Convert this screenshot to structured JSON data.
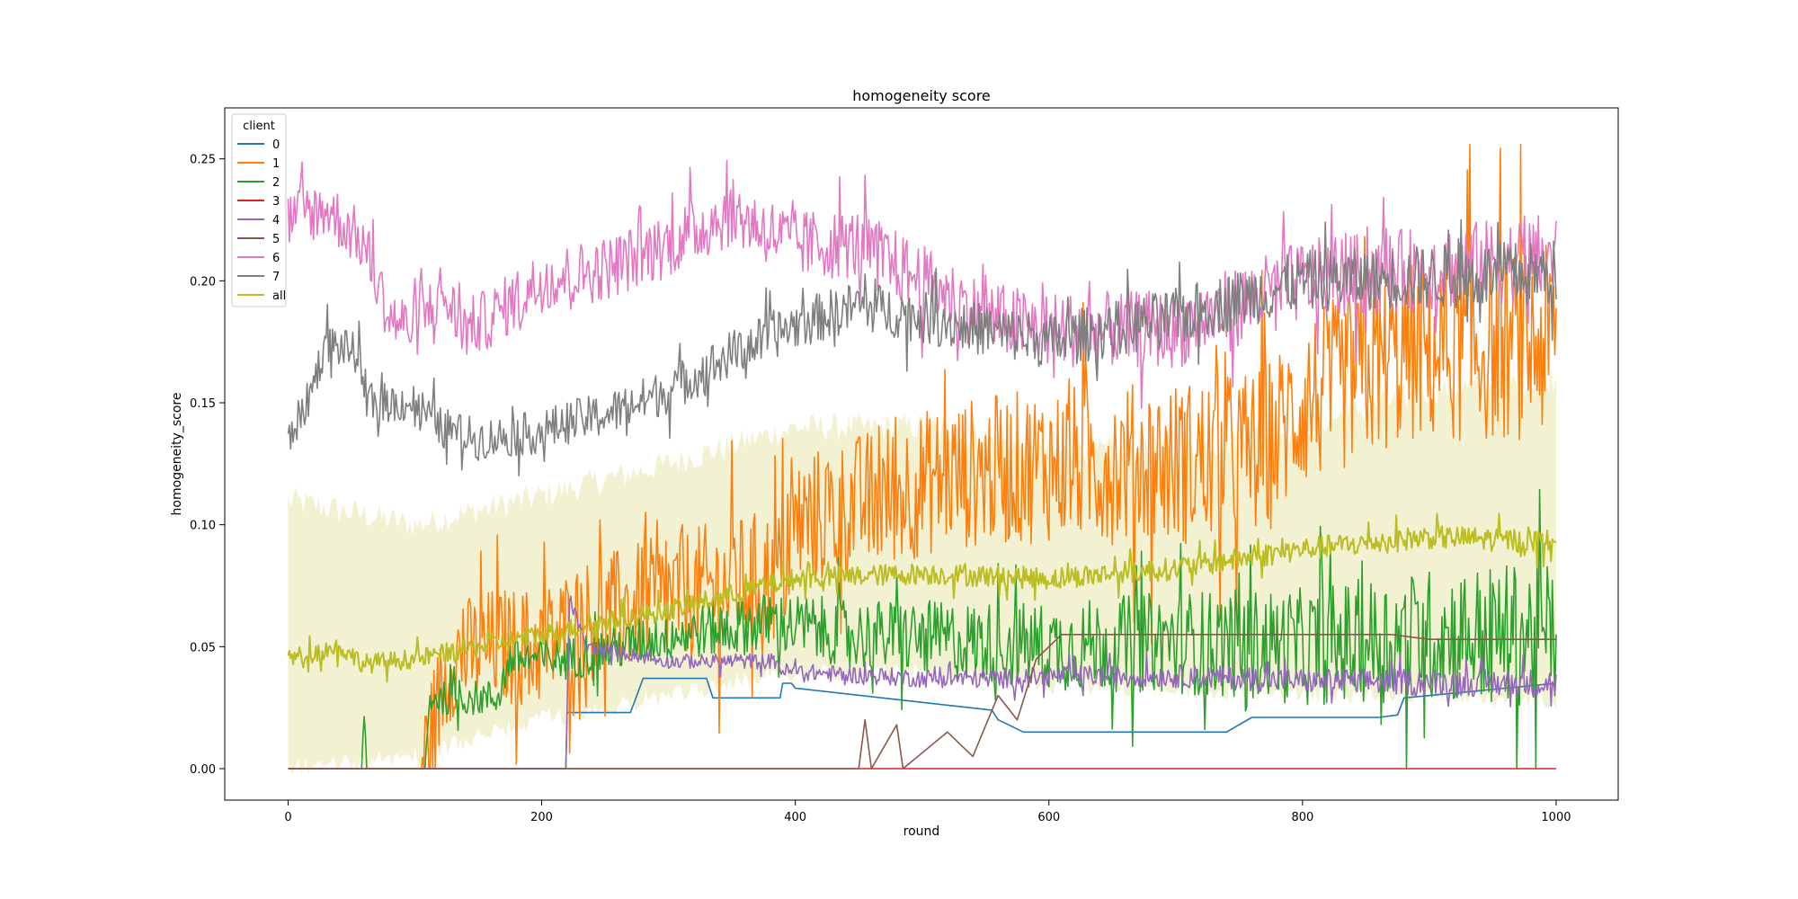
{
  "chart_data": {
    "type": "line",
    "title": "homogeneity score",
    "xlabel": "round",
    "ylabel": "homogeneity_score",
    "xlim": [
      -49.95,
      1048.95
    ],
    "ylim": [
      -0.0129,
      0.2709
    ],
    "xticks": [
      0,
      200,
      400,
      600,
      800,
      1000
    ],
    "yticks": [
      0.0,
      0.05,
      0.1,
      0.15,
      0.2,
      0.25
    ],
    "xtick_labels": [
      "0",
      "200",
      "400",
      "600",
      "800",
      "1000"
    ],
    "ytick_labels": [
      "0.00",
      "0.05",
      "0.10",
      "0.15",
      "0.20",
      "0.25"
    ],
    "grid": false,
    "legend": {
      "title": "client",
      "position": "upper-left"
    },
    "series": [
      {
        "name": "0",
        "color": "#1f77b4",
        "noisy": false,
        "points": [
          [
            0,
            0
          ],
          [
            219,
            0
          ],
          [
            220,
            0.023
          ],
          [
            270,
            0.023
          ],
          [
            280,
            0.037
          ],
          [
            330,
            0.037
          ],
          [
            335,
            0.029
          ],
          [
            388,
            0.029
          ],
          [
            390,
            0.035
          ],
          [
            397,
            0.035
          ],
          [
            400,
            0.033
          ],
          [
            555,
            0.024
          ],
          [
            560,
            0.02
          ],
          [
            580,
            0.015
          ],
          [
            740,
            0.015
          ],
          [
            760,
            0.021
          ],
          [
            860,
            0.021
          ],
          [
            875,
            0.022
          ],
          [
            880,
            0.029
          ],
          [
            960,
            0.033
          ],
          [
            1000,
            0.035
          ]
        ]
      },
      {
        "name": "1",
        "color": "#ff7f0e",
        "noisy": true,
        "band": [
          0.022,
          0.025
        ],
        "bandGrowth": [
          0,
          0.6
        ],
        "points": [
          [
            0,
            0
          ],
          [
            94,
            0
          ],
          [
            105,
            0
          ],
          [
            120,
            0.03
          ],
          [
            130,
            0.045
          ],
          [
            160,
            0.05
          ],
          [
            200,
            0.05
          ],
          [
            230,
            0.06
          ],
          [
            300,
            0.07
          ],
          [
            390,
            0.08
          ],
          [
            400,
            0.1
          ],
          [
            460,
            0.11
          ],
          [
            520,
            0.12
          ],
          [
            600,
            0.125
          ],
          [
            700,
            0.125
          ],
          [
            770,
            0.13
          ],
          [
            800,
            0.15
          ],
          [
            880,
            0.17
          ],
          [
            1000,
            0.175
          ]
        ]
      },
      {
        "name": "2",
        "color": "#2ca02c",
        "noisy": true,
        "band": [
          0.005,
          0.018
        ],
        "bandGrowth": [
          0.2,
          0.7
        ],
        "points": [
          [
            0,
            0
          ],
          [
            58,
            0
          ],
          [
            60,
            0.025
          ],
          [
            62,
            0
          ],
          [
            108,
            0
          ],
          [
            112,
            0.029
          ],
          [
            165,
            0.029
          ],
          [
            175,
            0.045
          ],
          [
            220,
            0.045
          ],
          [
            300,
            0.055
          ],
          [
            380,
            0.06
          ],
          [
            450,
            0.055
          ],
          [
            600,
            0.05
          ],
          [
            700,
            0.052
          ],
          [
            800,
            0.05
          ],
          [
            900,
            0.055
          ],
          [
            1000,
            0.055
          ]
        ]
      },
      {
        "name": "3",
        "color": "#d62728",
        "noisy": false,
        "points": [
          [
            0,
            0
          ],
          [
            1000,
            0
          ]
        ]
      },
      {
        "name": "4",
        "color": "#9467bd",
        "noisy": true,
        "band": [
          0.002,
          0.006
        ],
        "bandGrowth": [
          0,
          0
        ],
        "points": [
          [
            0,
            0
          ],
          [
            219,
            0
          ],
          [
            222,
            0.07
          ],
          [
            235,
            0.05
          ],
          [
            300,
            0.044
          ],
          [
            385,
            0.044
          ],
          [
            390,
            0.04
          ],
          [
            500,
            0.037
          ],
          [
            580,
            0.037
          ],
          [
            600,
            0.038
          ],
          [
            700,
            0.038
          ],
          [
            800,
            0.036
          ],
          [
            1000,
            0.035
          ]
        ]
      },
      {
        "name": "5",
        "color": "#8c564b",
        "noisy": false,
        "points": [
          [
            0,
            0
          ],
          [
            450,
            0
          ],
          [
            455,
            0.02
          ],
          [
            460,
            0
          ],
          [
            480,
            0.018
          ],
          [
            485,
            0
          ],
          [
            520,
            0.015
          ],
          [
            540,
            0.005
          ],
          [
            560,
            0.03
          ],
          [
            575,
            0.02
          ],
          [
            590,
            0.045
          ],
          [
            600,
            0.05
          ],
          [
            610,
            0.055
          ],
          [
            700,
            0.055
          ],
          [
            870,
            0.055
          ],
          [
            900,
            0.053
          ],
          [
            1000,
            0.053
          ]
        ]
      },
      {
        "name": "6",
        "color": "#e377c2",
        "noisy": true,
        "band": [
          0.012,
          0.014
        ],
        "bandGrowth": [
          0,
          0.3
        ],
        "points": [
          [
            0,
            0.225
          ],
          [
            30,
            0.23
          ],
          [
            60,
            0.215
          ],
          [
            80,
            0.185
          ],
          [
            100,
            0.18
          ],
          [
            120,
            0.195
          ],
          [
            140,
            0.18
          ],
          [
            160,
            0.185
          ],
          [
            200,
            0.2
          ],
          [
            250,
            0.205
          ],
          [
            300,
            0.215
          ],
          [
            350,
            0.228
          ],
          [
            400,
            0.215
          ],
          [
            450,
            0.215
          ],
          [
            500,
            0.2
          ],
          [
            550,
            0.185
          ],
          [
            600,
            0.18
          ],
          [
            700,
            0.18
          ],
          [
            800,
            0.2
          ],
          [
            900,
            0.205
          ],
          [
            1000,
            0.21
          ]
        ]
      },
      {
        "name": "7",
        "color": "#7f7f7f",
        "noisy": true,
        "band": [
          0.008,
          0.01
        ],
        "bandGrowth": [
          0,
          0.4
        ],
        "points": [
          [
            0,
            0.135
          ],
          [
            15,
            0.15
          ],
          [
            30,
            0.175
          ],
          [
            55,
            0.17
          ],
          [
            60,
            0.15
          ],
          [
            100,
            0.15
          ],
          [
            120,
            0.14
          ],
          [
            150,
            0.135
          ],
          [
            200,
            0.138
          ],
          [
            220,
            0.142
          ],
          [
            250,
            0.145
          ],
          [
            300,
            0.155
          ],
          [
            350,
            0.17
          ],
          [
            400,
            0.182
          ],
          [
            450,
            0.19
          ],
          [
            500,
            0.185
          ],
          [
            600,
            0.175
          ],
          [
            700,
            0.185
          ],
          [
            800,
            0.2
          ],
          [
            1000,
            0.203
          ]
        ]
      },
      {
        "name": "all",
        "color": "#bcbd22",
        "noisy": true,
        "band": [
          0.004,
          0.005
        ],
        "bandGrowth": [
          0,
          0
        ],
        "points": [
          [
            0,
            0.045
          ],
          [
            40,
            0.05
          ],
          [
            60,
            0.043
          ],
          [
            100,
            0.045
          ],
          [
            150,
            0.05
          ],
          [
            200,
            0.055
          ],
          [
            300,
            0.065
          ],
          [
            400,
            0.078
          ],
          [
            500,
            0.08
          ],
          [
            600,
            0.078
          ],
          [
            700,
            0.082
          ],
          [
            800,
            0.09
          ],
          [
            900,
            0.095
          ],
          [
            1000,
            0.093
          ]
        ]
      }
    ],
    "confidence_band": {
      "series": "all",
      "lower": [
        [
          0,
          0.0
        ],
        [
          100,
          0.005
        ],
        [
          200,
          0.02
        ],
        [
          300,
          0.03
        ],
        [
          400,
          0.04
        ],
        [
          500,
          0.04
        ],
        [
          600,
          0.035
        ],
        [
          700,
          0.032
        ],
        [
          800,
          0.03
        ],
        [
          900,
          0.03
        ],
        [
          1000,
          0.028
        ]
      ],
      "upper": [
        [
          0,
          0.11
        ],
        [
          100,
          0.1
        ],
        [
          200,
          0.112
        ],
        [
          300,
          0.125
        ],
        [
          400,
          0.14
        ],
        [
          500,
          0.14
        ],
        [
          600,
          0.13
        ],
        [
          700,
          0.13
        ],
        [
          800,
          0.14
        ],
        [
          900,
          0.155
        ],
        [
          1000,
          0.16
        ]
      ]
    }
  }
}
